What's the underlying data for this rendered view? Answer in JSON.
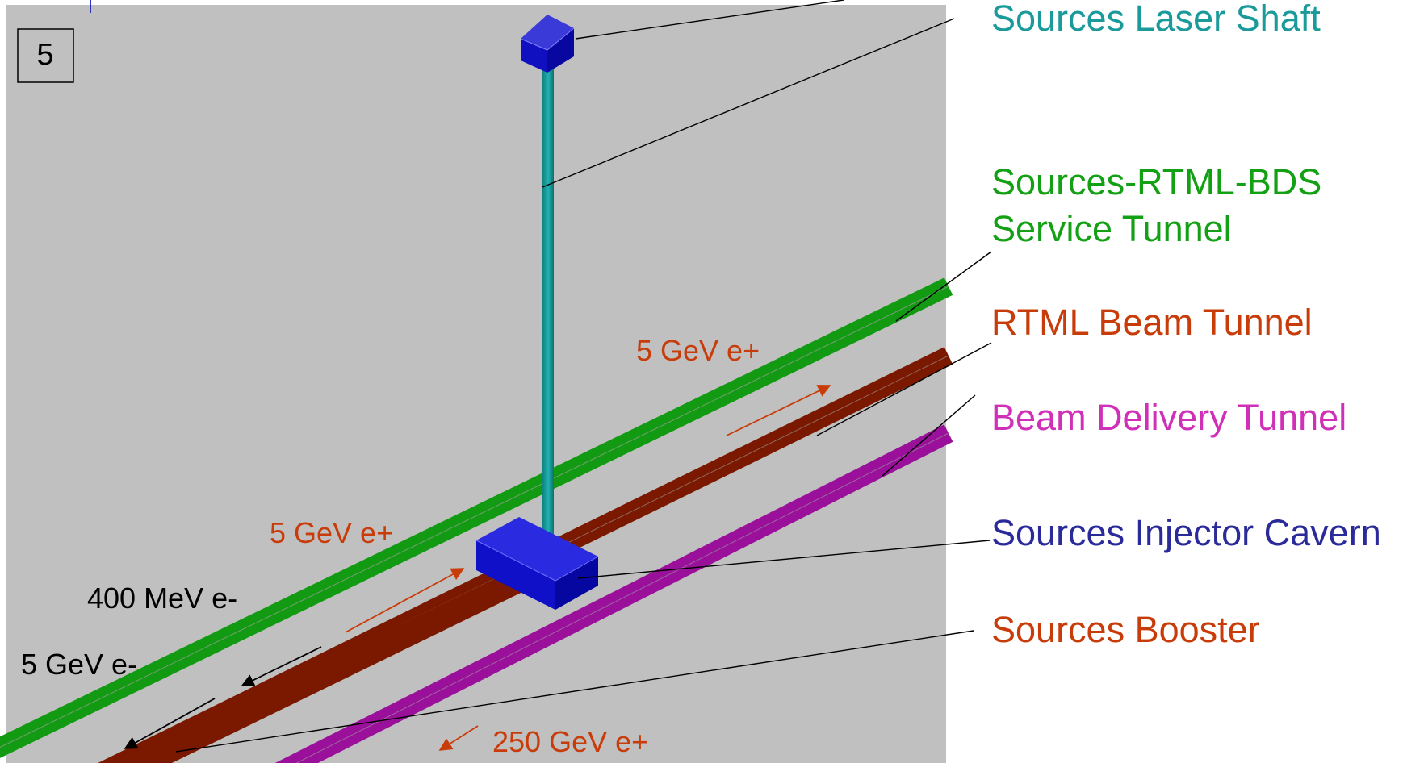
{
  "panel_number": "5",
  "labels": {
    "laser_shaft": "Sources Laser Shaft",
    "service_tunnel_line1": "Sources-RTML-BDS",
    "service_tunnel_line2": "Service Tunnel",
    "rtml_beam_tunnel": "RTML Beam Tunnel",
    "beam_delivery_tunnel": "Beam Delivery Tunnel",
    "injector_cavern": "Sources Injector Cavern",
    "sources_booster": "Sources Booster"
  },
  "beam_labels": {
    "positron_5gev_upper": "5 GeV e+",
    "positron_5gev_lower": "5 GeV e+",
    "electron_400mev": "400 MeV e-",
    "electron_5gev": "5 GeV e-",
    "positron_250gev": "250 GeV e+"
  },
  "colors": {
    "background_scene": "#c0c0c0",
    "laser_shaft": "#18a0a0",
    "service_tunnel": "#20e020",
    "rtml_beam_tunnel": "#b42800",
    "beam_delivery_tunnel": "#e020e0",
    "cavern_blue": "#1010c8",
    "text_teal": "#1a9a9a",
    "text_green": "#14a014",
    "text_orange": "#c83c0a",
    "text_magenta": "#d030b8",
    "text_navy": "#2a2a9a"
  }
}
